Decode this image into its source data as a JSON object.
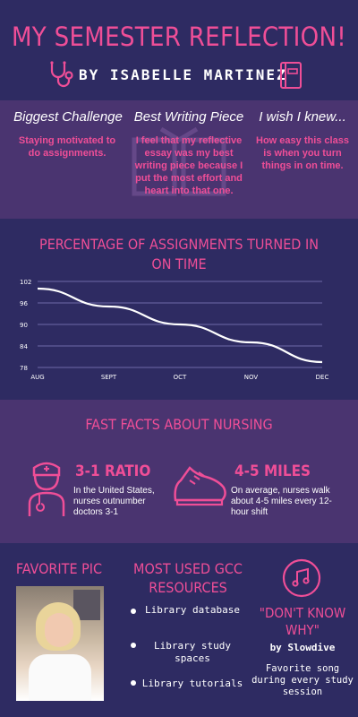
{
  "header": {
    "title": "MY SEMESTER REFLECTION!",
    "byline": "BY ISABELLE MARTINEZ"
  },
  "reflection": {
    "columns": [
      {
        "heading": "Biggest Challenge",
        "text": "Staying motivated to do assignments."
      },
      {
        "heading": "Best Writing Piece",
        "text": "I feel that my reflective essay was my best writing piece because I put the most effort and heart into that one."
      },
      {
        "heading": "I wish I knew...",
        "text": "How easy this class is when you turn things in on time."
      }
    ]
  },
  "chart_data": {
    "type": "line",
    "title": "PERCENTAGE OF ASSIGNMENTS TURNED IN ON TIME",
    "x": [
      "AUG",
      "SEPT",
      "OCT",
      "NOV",
      "DEC"
    ],
    "y_ticks": [
      "102",
      "96",
      "90",
      "84",
      "78"
    ],
    "ylim": [
      78,
      102
    ],
    "series": [
      {
        "values": [
          100,
          95,
          90,
          85,
          79.5
        ]
      }
    ],
    "grid": true,
    "line_color": "#ffffff"
  },
  "fast_facts": {
    "title": "FAST FACTS ABOUT NURSING",
    "facts": [
      {
        "icon": "nurse-icon",
        "heading": "3-1 RATIO",
        "text": "In the United States, nurses outnumber doctors 3-1"
      },
      {
        "icon": "sneaker-icon",
        "heading": "4-5 MILES",
        "text": "On average, nurses walk about 4-5 miles every 12- hour shift"
      }
    ]
  },
  "favorite_pic": {
    "heading": "FAVORITE PIC"
  },
  "resources": {
    "heading": "MOST USED GCC RESOURCES",
    "items": [
      "Library database",
      "Library study spaces",
      "Library tutorials"
    ]
  },
  "song": {
    "icon": "music-note-icon",
    "title": "\"DON'T KNOW WHY\"",
    "artist": "by Slowdive",
    "note": "Favorite song during every study session"
  },
  "colors": {
    "accent": "#ef4e97",
    "navy": "#2e2b62",
    "purple": "#4a3470"
  }
}
